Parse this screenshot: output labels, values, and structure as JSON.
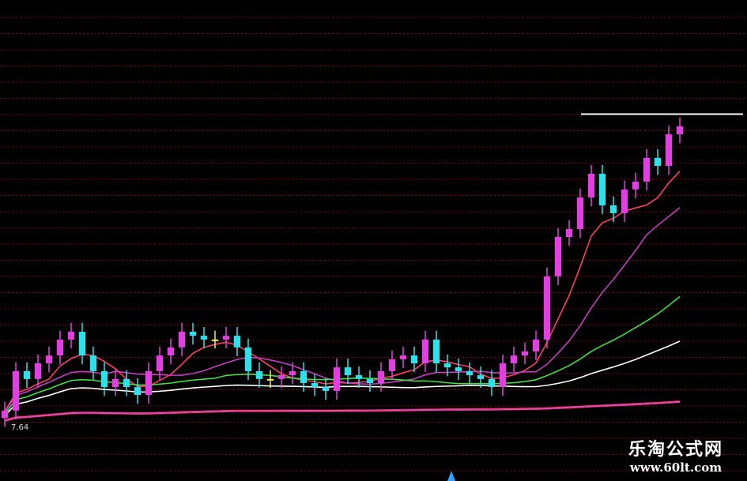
{
  "chart_data": {
    "type": "candlestick",
    "title": "",
    "xlabel": "",
    "ylabel": "",
    "ylim": [
      7.0,
      21.0
    ],
    "grid": true,
    "grid_color": "#8b0000",
    "closes": [
      8.27,
      9.83,
      9.52,
      10.14,
      10.45,
      11.08,
      11.39,
      10.45,
      9.83,
      9.2,
      9.52,
      9.2,
      8.89,
      9.83,
      10.45,
      10.77,
      11.39,
      11.23,
      11.08,
      11.08,
      11.23,
      10.77,
      9.83,
      9.52,
      9.52,
      9.67,
      9.83,
      9.36,
      9.2,
      9.05,
      9.98,
      9.67,
      9.52,
      9.36,
      9.83,
      10.3,
      10.45,
      10.14,
      11.08,
      10.14,
      9.98,
      9.83,
      9.67,
      9.52,
      9.2,
      10.14,
      10.45,
      10.61,
      11.08,
      13.58,
      15.14,
      15.45,
      16.7,
      17.64,
      16.39,
      16.08,
      17.02,
      17.33,
      18.27,
      17.95,
      19.2,
      19.52
    ],
    "resistance_level": 20.0,
    "low_label": "7.64",
    "bar_colors": {
      "up": "#e040e0",
      "down": "#30e0e8",
      "neutral": "#f0f040"
    },
    "ma_lines": [
      {
        "period": 5,
        "color": "#ff4060"
      },
      {
        "period": 10,
        "color": "#c040c0"
      },
      {
        "period": 20,
        "color": "#40e040"
      },
      {
        "period": 30,
        "color": "#ffffff"
      },
      {
        "period": 60,
        "color": "#ff2020"
      },
      {
        "period": 90,
        "color": "#3030ff"
      },
      {
        "period": 120,
        "color": "#ffff80"
      },
      {
        "period": 250,
        "color": "#d040d0"
      }
    ]
  },
  "header": {
    "segments": [
      "",
      "",
      "",
      ""
    ]
  },
  "watermark": {
    "title": "乐淘公式网",
    "url": "www.60lt.com"
  }
}
